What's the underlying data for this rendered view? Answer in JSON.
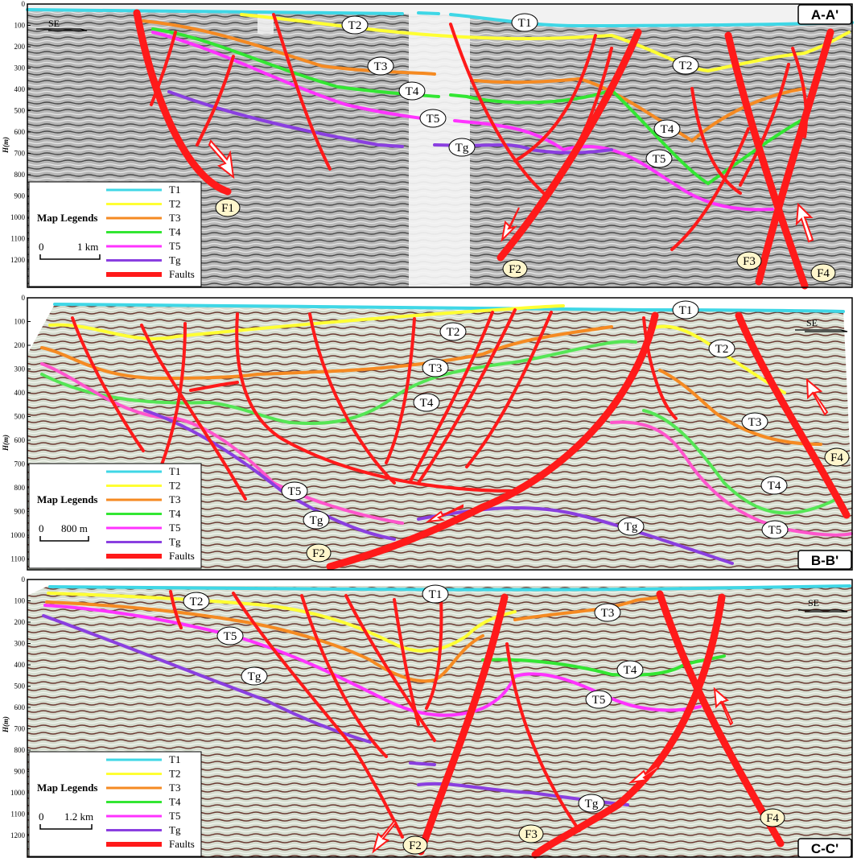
{
  "legend": {
    "title": "Map Legends",
    "items": [
      {
        "name": "T1",
        "color": "#3fd7e6"
      },
      {
        "name": "T2",
        "color": "#ffff33"
      },
      {
        "name": "T3",
        "color": "#f58a22"
      },
      {
        "name": "T4",
        "color": "#33e633"
      },
      {
        "name": "T5",
        "color": "#ff33ff"
      },
      {
        "name": "Tg",
        "color": "#8a3fe0"
      },
      {
        "name": "Faults",
        "color": "#ff1a1a"
      }
    ]
  },
  "axis_label": "H(m)",
  "direction": "SE",
  "panels": [
    {
      "name": "A-A'",
      "scale": "1 km",
      "ticks": [
        "0",
        "100",
        "200",
        "300",
        "400",
        "500",
        "600",
        "700",
        "800",
        "900",
        "1000",
        "1100",
        "1200"
      ],
      "horizons": [
        "T1",
        "T2",
        "T3",
        "T4",
        "T5",
        "Tg"
      ],
      "faults": [
        "F1",
        "F2",
        "F3",
        "F4"
      ]
    },
    {
      "name": "B-B'",
      "scale": "800 m",
      "ticks": [
        "0",
        "100",
        "200",
        "300",
        "400",
        "500",
        "600",
        "700",
        "800",
        "900",
        "1000",
        "1100"
      ],
      "horizons": [
        "T1",
        "T2",
        "T3",
        "T4",
        "T5",
        "Tg",
        "T2",
        "T3",
        "T4",
        "T5",
        "Tg"
      ],
      "faults": [
        "F2",
        "F4"
      ]
    },
    {
      "name": "C-C'",
      "scale": "1.2 km",
      "ticks": [
        "0",
        "100",
        "200",
        "300",
        "400",
        "500",
        "600",
        "700",
        "800",
        "900",
        "1000",
        "1100",
        "1200"
      ],
      "horizons": [
        "T1",
        "T2",
        "T3",
        "T4",
        "T5",
        "Tg",
        "T5",
        "Tg"
      ],
      "faults": [
        "F2",
        "F3",
        "F4"
      ]
    }
  ]
}
